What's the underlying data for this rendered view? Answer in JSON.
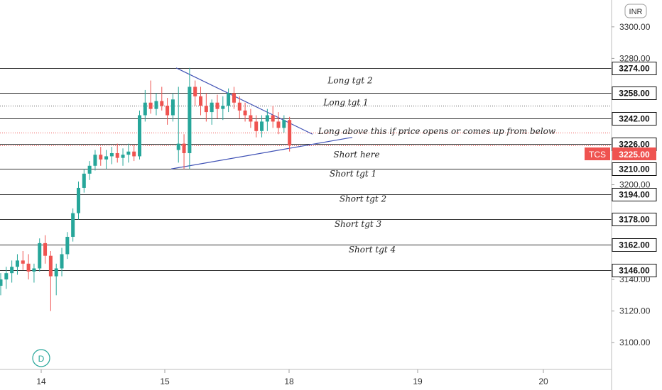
{
  "currency_button": "INR",
  "interval_badge": "D",
  "symbol": "TCS",
  "last_price": "3225.00",
  "colors": {
    "up": "#26a69a",
    "down": "#ef5350",
    "trendline": "#3f51b5",
    "level": "#333333",
    "price_badge": "#ef5350",
    "dotted": "#ef5350"
  },
  "chart_data": {
    "type": "candlestick",
    "y_range": [
      3083,
      3317
    ],
    "y_ticks": [
      "3300.00",
      "3280.00",
      "3200.00",
      "3140.00",
      "3120.00",
      "3100.00"
    ],
    "x_ticks": [
      "14",
      "15",
      "18",
      "19",
      "20"
    ],
    "levels": [
      {
        "price": 3274,
        "label": "3274.00",
        "style": "solid"
      },
      {
        "price": 3258,
        "label": "3258.00",
        "style": "solid"
      },
      {
        "price": 3242,
        "label": "3242.00",
        "style": "solid"
      },
      {
        "price": 3226,
        "label": "3226.00",
        "style": "solid"
      },
      {
        "price": 3210,
        "label": "3210.00",
        "style": "solid"
      },
      {
        "price": 3194,
        "label": "3194.00",
        "style": "solid"
      },
      {
        "price": 3178,
        "label": "3178.00",
        "style": "solid"
      },
      {
        "price": 3162,
        "label": "3162.00",
        "style": "solid"
      },
      {
        "price": 3146,
        "label": "3146.00",
        "style": "solid"
      }
    ],
    "annotations": [
      {
        "text": "Long tgt 2",
        "price": 3266
      },
      {
        "text": "Long tgt 1",
        "price": 3252
      },
      {
        "text": "Long above this if price opens or comes up from below",
        "price": 3234
      },
      {
        "text": "Short here",
        "price": 3219
      },
      {
        "text": "Short tgt 1",
        "price": 3207
      },
      {
        "text": "Short tgt 2",
        "price": 3191
      },
      {
        "text": "Short tgt 3",
        "price": 3175
      },
      {
        "text": "Short tgt 4",
        "price": 3159
      }
    ],
    "candles": [
      [
        3136,
        3144,
        3130,
        3140
      ],
      [
        3140,
        3148,
        3134,
        3144
      ],
      [
        3144,
        3152,
        3138,
        3148
      ],
      [
        3148,
        3156,
        3143,
        3152
      ],
      [
        3152,
        3158,
        3146,
        3150
      ],
      [
        3150,
        3156,
        3140,
        3145
      ],
      [
        3145,
        3150,
        3138,
        3147
      ],
      [
        3147,
        3166,
        3145,
        3163
      ],
      [
        3163,
        3168,
        3150,
        3155
      ],
      [
        3155,
        3158,
        3120,
        3142
      ],
      [
        3142,
        3150,
        3130,
        3147
      ],
      [
        3147,
        3160,
        3142,
        3156
      ],
      [
        3156,
        3170,
        3153,
        3167
      ],
      [
        3167,
        3185,
        3164,
        3182
      ],
      [
        3182,
        3202,
        3178,
        3198
      ],
      [
        3198,
        3210,
        3195,
        3207
      ],
      [
        3207,
        3215,
        3203,
        3212
      ],
      [
        3212,
        3222,
        3209,
        3219
      ],
      [
        3219,
        3224,
        3212,
        3216
      ],
      [
        3216,
        3222,
        3210,
        3218
      ],
      [
        3218,
        3224,
        3213,
        3220
      ],
      [
        3220,
        3226,
        3214,
        3217
      ],
      [
        3217,
        3223,
        3212,
        3219
      ],
      [
        3219,
        3226,
        3214,
        3221
      ],
      [
        3221,
        3225,
        3215,
        3218
      ],
      [
        3218,
        3247,
        3216,
        3244
      ],
      [
        3244,
        3260,
        3240,
        3252
      ],
      [
        3252,
        3266,
        3245,
        3248
      ],
      [
        3248,
        3258,
        3244,
        3253
      ],
      [
        3253,
        3262,
        3247,
        3250
      ],
      [
        3250,
        3255,
        3238,
        3244
      ],
      [
        3244,
        3258,
        3240,
        3254
      ],
      [
        3222,
        3262,
        3214,
        3226
      ],
      [
        3226,
        3232,
        3210,
        3220
      ],
      [
        3220,
        3274,
        3210,
        3262
      ],
      [
        3262,
        3266,
        3250,
        3256
      ],
      [
        3256,
        3262,
        3244,
        3250
      ],
      [
        3250,
        3258,
        3240,
        3246
      ],
      [
        3246,
        3254,
        3238,
        3252
      ],
      [
        3252,
        3257,
        3242,
        3248
      ],
      [
        3248,
        3256,
        3241,
        3250
      ],
      [
        3250,
        3261,
        3246,
        3258
      ],
      [
        3258,
        3262,
        3248,
        3252
      ],
      [
        3252,
        3256,
        3242,
        3247
      ],
      [
        3247,
        3252,
        3240,
        3244
      ],
      [
        3244,
        3248,
        3236,
        3240
      ],
      [
        3240,
        3244,
        3230,
        3234
      ],
      [
        3234,
        3244,
        3230,
        3240
      ],
      [
        3240,
        3248,
        3234,
        3244
      ],
      [
        3244,
        3250,
        3236,
        3240
      ],
      [
        3240,
        3246,
        3232,
        3236
      ],
      [
        3236,
        3244,
        3233,
        3241
      ],
      [
        3241,
        3243,
        3221,
        3225
      ]
    ]
  }
}
